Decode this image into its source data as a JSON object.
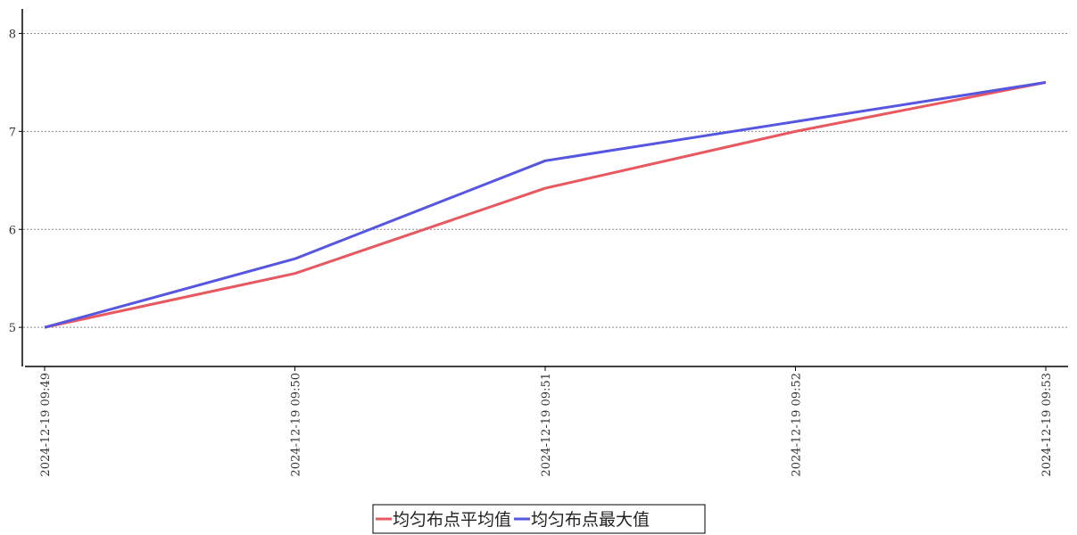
{
  "chart_data": {
    "type": "line",
    "categories": [
      "2024-12-19 09:49",
      "2024-12-19 09:50",
      "2024-12-19 09:51",
      "2024-12-19 09:52",
      "2024-12-19 09:53"
    ],
    "series": [
      {
        "name": "均匀布点平均值",
        "color": "#e8585f",
        "values": [
          5,
          5.55,
          6.42,
          7.0,
          7.5
        ]
      },
      {
        "name": "均匀布点最大值",
        "color": "#5656e0",
        "values": [
          5,
          5.7,
          6.7,
          7.1,
          7.5
        ]
      }
    ],
    "ylim": [
      4.61,
      8.25
    ],
    "yticks": [
      5,
      6,
      7,
      8
    ],
    "grid": true
  }
}
